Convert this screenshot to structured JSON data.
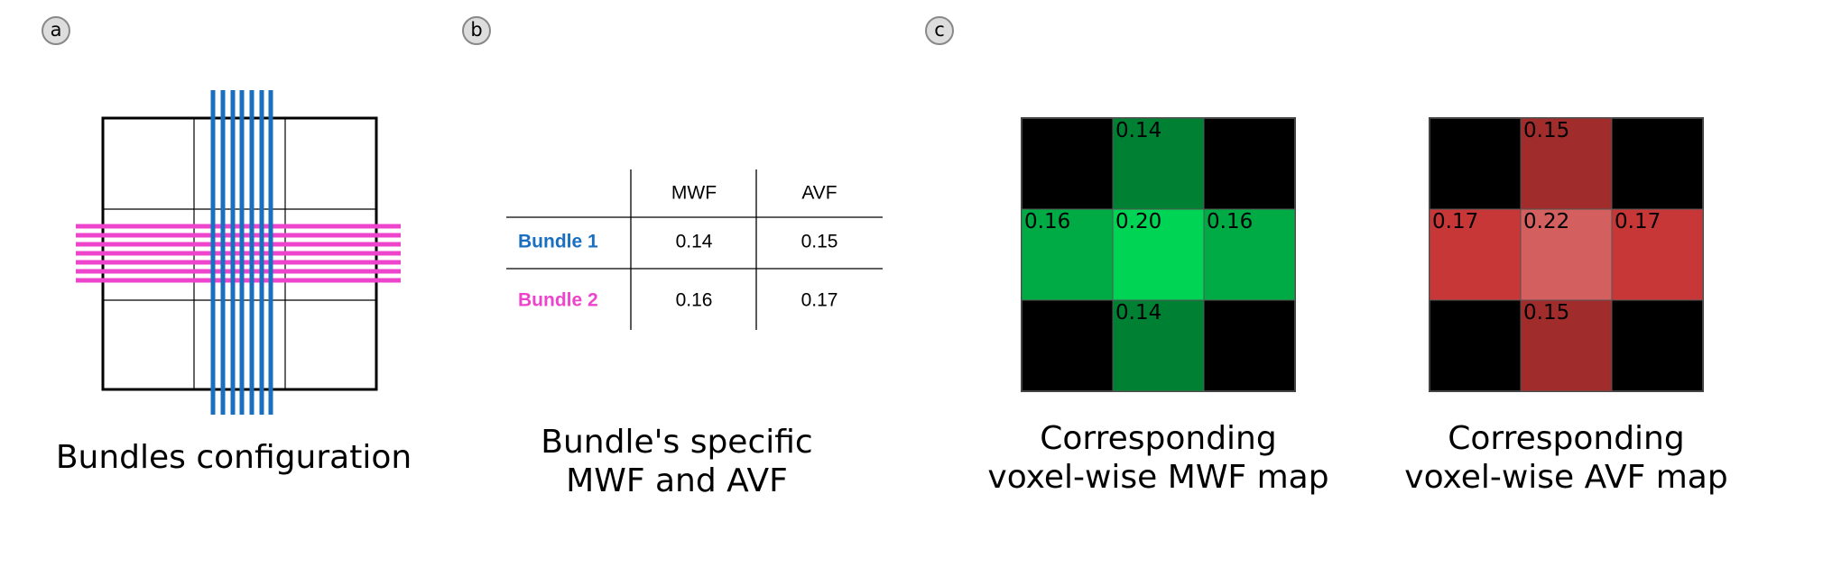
{
  "panels": {
    "a": {
      "label": "a",
      "caption": "Bundles configuration"
    },
    "b": {
      "label": "b",
      "table": {
        "columns": [
          "MWF",
          "AVF"
        ],
        "rows": [
          {
            "name": "Bundle 1",
            "values": [
              "0.14",
              "0.15"
            ]
          },
          {
            "name": "Bundle 2",
            "values": [
              "0.16",
              "0.17"
            ]
          }
        ]
      },
      "caption": [
        "Bundle's specific",
        "MWF and AVF"
      ]
    },
    "c": {
      "label": "c",
      "maps": [
        {
          "top": "0.14",
          "left": "0.16",
          "center": "0.20",
          "right": "0.16",
          "bottom": "0.14",
          "caption": [
            "Corresponding",
            "voxel-wise MWF map"
          ]
        },
        {
          "top": "0.15",
          "left": "0.17",
          "center": "0.22",
          "right": "0.17",
          "bottom": "0.15",
          "caption": [
            "Corresponding",
            "voxel-wise AVF map"
          ]
        }
      ]
    }
  }
}
